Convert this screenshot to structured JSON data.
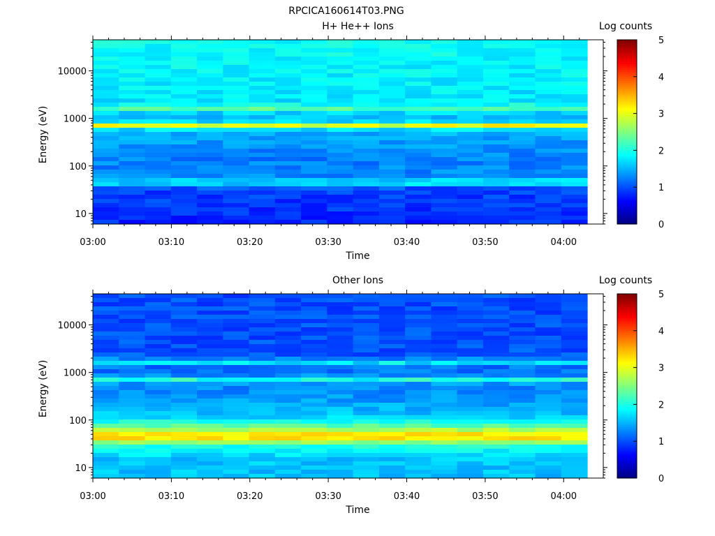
{
  "figure_title": "RPCICA160614T03.PNG",
  "chart_data": [
    {
      "type": "heatmap",
      "title": "H+ He++ Ions",
      "xlabel": "Time",
      "ylabel": "Energy (eV)",
      "x_ticks": [
        "03:00",
        "03:10",
        "03:20",
        "03:30",
        "03:40",
        "03:50",
        "04:00"
      ],
      "x_range": [
        "03:00",
        "04:03"
      ],
      "y_scale": "log",
      "y_ticks": [
        10,
        100,
        1000,
        10000
      ],
      "y_range": [
        6,
        45000
      ],
      "colorbar": {
        "label": "Log counts",
        "range": [
          0,
          5
        ],
        "ticks": [
          0,
          1,
          2,
          3,
          4,
          5
        ]
      },
      "features": [
        {
          "description_energy_eV": 1650,
          "log_counts": 2.3
        },
        {
          "description_energy_eV": 700,
          "log_counts": 3.0
        },
        {
          "description_energy_eV": 45,
          "log_counts": 2.0
        }
      ],
      "baseline_profile": [
        {
          "energy_eV": 40000,
          "log_counts": 1.9
        },
        {
          "energy_eV": 5000,
          "log_counts": 1.8
        },
        {
          "energy_eV": 2000,
          "log_counts": 1.75
        },
        {
          "energy_eV": 1000,
          "log_counts": 1.55
        },
        {
          "energy_eV": 400,
          "log_counts": 1.45
        },
        {
          "energy_eV": 150,
          "log_counts": 1.25
        },
        {
          "energy_eV": 60,
          "log_counts": 1.3
        },
        {
          "energy_eV": 30,
          "log_counts": 0.95
        },
        {
          "energy_eV": 6,
          "log_counts": 0.8
        }
      ]
    },
    {
      "type": "heatmap",
      "title": "Other Ions",
      "xlabel": "Time",
      "ylabel": "Energy (eV)",
      "x_ticks": [
        "03:00",
        "03:10",
        "03:20",
        "03:30",
        "03:40",
        "03:50",
        "04:00"
      ],
      "x_range": [
        "03:00",
        "04:03"
      ],
      "y_scale": "log",
      "y_ticks": [
        10,
        100,
        1000,
        10000
      ],
      "y_range": [
        6,
        45000
      ],
      "colorbar": {
        "label": "Log counts",
        "range": [
          0,
          5
        ],
        "ticks": [
          0,
          1,
          2,
          3,
          4,
          5
        ]
      },
      "features": [
        {
          "description_energy_eV": 1650,
          "log_counts": 1.8
        },
        {
          "description_energy_eV": 700,
          "log_counts": 2.0
        },
        {
          "description_energy_eV": 45,
          "log_counts": 3.5
        }
      ],
      "baseline_profile": [
        {
          "energy_eV": 40000,
          "log_counts": 1.0
        },
        {
          "energy_eV": 5000,
          "log_counts": 1.0
        },
        {
          "energy_eV": 2000,
          "log_counts": 1.05
        },
        {
          "energy_eV": 1000,
          "log_counts": 1.2
        },
        {
          "energy_eV": 300,
          "log_counts": 1.35
        },
        {
          "energy_eV": 120,
          "log_counts": 1.6
        },
        {
          "energy_eV": 70,
          "log_counts": 2.4
        },
        {
          "energy_eV": 45,
          "log_counts": 3.5
        },
        {
          "energy_eV": 28,
          "log_counts": 2.0
        },
        {
          "energy_eV": 15,
          "log_counts": 1.6
        },
        {
          "energy_eV": 6,
          "log_counts": 1.55
        }
      ]
    }
  ]
}
